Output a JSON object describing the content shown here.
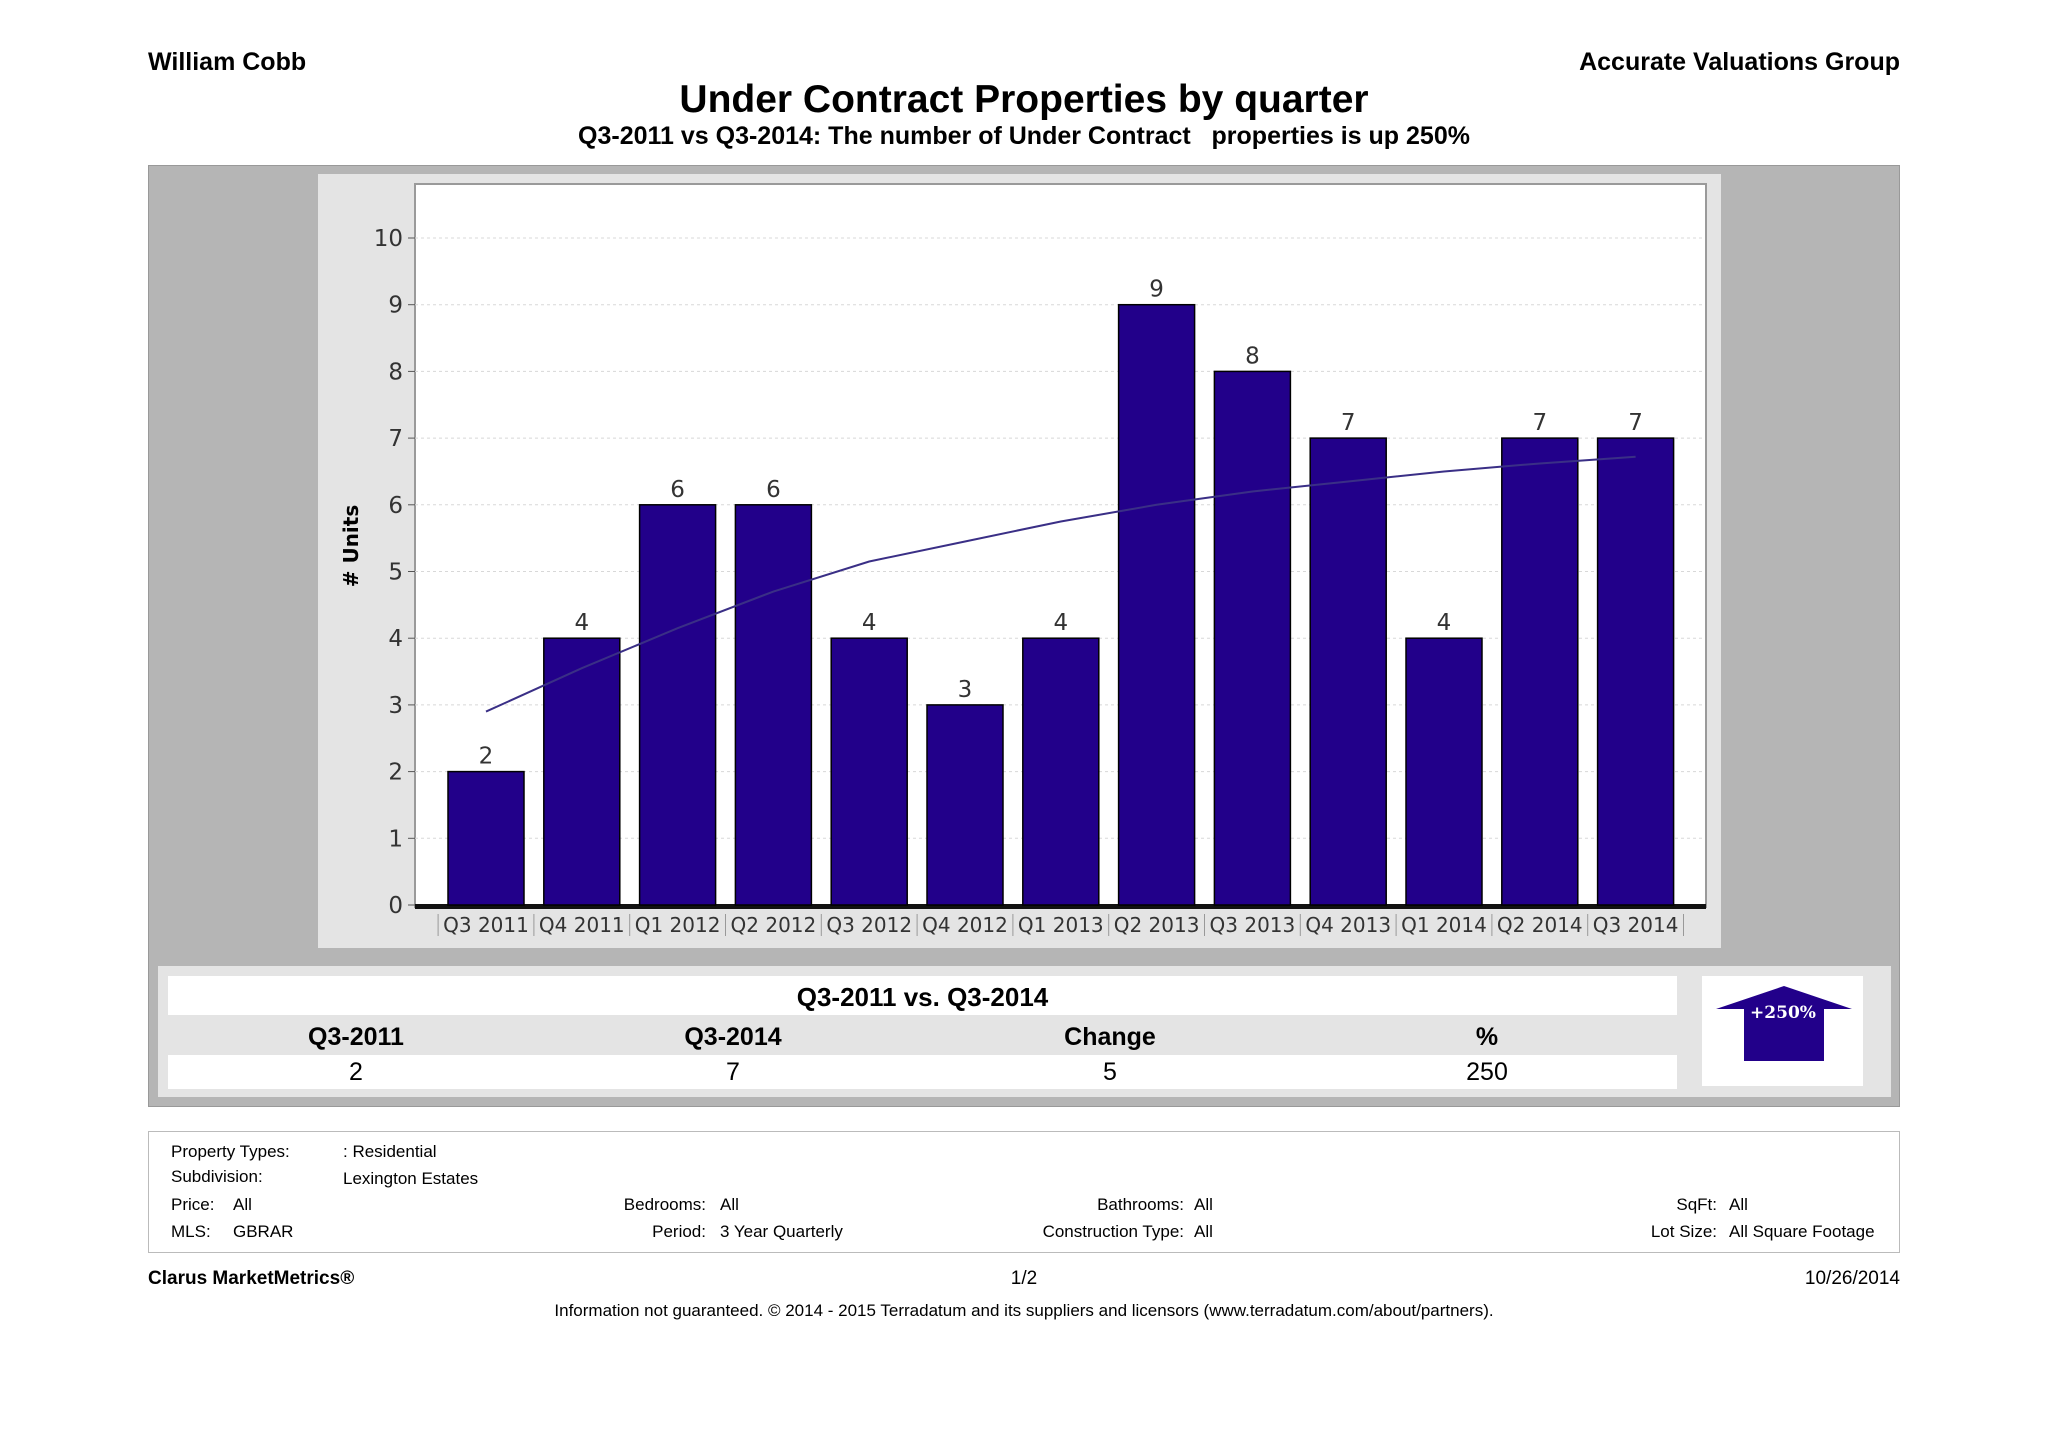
{
  "header": {
    "agent": "William  Cobb",
    "company": "Accurate Valuations Group",
    "title": "Under Contract Properties by quarter",
    "subtitle": "Q3-2011 vs Q3-2014: The number of Under Contract   properties is up 250%"
  },
  "chart_data": {
    "type": "bar",
    "categories": [
      "Q3 2011",
      "Q4 2011",
      "Q1 2012",
      "Q2 2012",
      "Q3 2012",
      "Q4 2012",
      "Q1 2013",
      "Q2 2013",
      "Q3 2013",
      "Q4 2013",
      "Q1 2014",
      "Q2 2014",
      "Q3 2014"
    ],
    "values": [
      2,
      4,
      6,
      6,
      4,
      3,
      4,
      9,
      8,
      7,
      4,
      7,
      7
    ],
    "trendline": [
      2.9,
      3.55,
      4.15,
      4.7,
      5.15,
      5.45,
      5.75,
      6.0,
      6.2,
      6.35,
      6.5,
      6.62,
      6.72
    ],
    "ylabel": "# Units",
    "ylim": [
      0,
      10
    ],
    "yticks": [
      0,
      1,
      2,
      3,
      4,
      5,
      6,
      7,
      8,
      9,
      10
    ],
    "grid": true,
    "colors": {
      "bar": "#22008a",
      "bar_edge": "#000000",
      "trend": "#3a2f86"
    }
  },
  "summary": {
    "title": "Q3-2011 vs. Q3-2014",
    "headers": [
      "Q3-2011",
      "Q3-2014",
      "Change",
      "%"
    ],
    "values": [
      "2",
      "7",
      "5",
      "250"
    ],
    "badge": "+250%",
    "badge_icon": "up-arrow-icon",
    "badge_color": "#22008a"
  },
  "filters": {
    "property_types_label": "Property Types:",
    "property_types_value": ": Residential",
    "subdivision_label": "Subdivision:",
    "subdivision_value": "Lexington Estates",
    "price_label": "Price:",
    "price_value": "All",
    "mls_label": "MLS:",
    "mls_value": "GBRAR",
    "bedrooms_label": "Bedrooms:",
    "bedrooms_value": "All",
    "period_label": "Period:",
    "period_value": "3 Year Quarterly",
    "bathrooms_label": "Bathrooms:",
    "bathrooms_value": "All",
    "construction_label": "Construction Type:",
    "construction_value": "All",
    "sqft_label": "SqFt:",
    "sqft_value": "All",
    "lot_label": "Lot Size:",
    "lot_value": "All Square Footage"
  },
  "footer": {
    "brand": "Clarus MarketMetrics®",
    "page": "1/2",
    "date": "10/26/2014",
    "disclaimer": "Information not guaranteed. © 2014 - 2015 Terradatum and its suppliers and licensors (www.terradatum.com/about/partners)."
  }
}
